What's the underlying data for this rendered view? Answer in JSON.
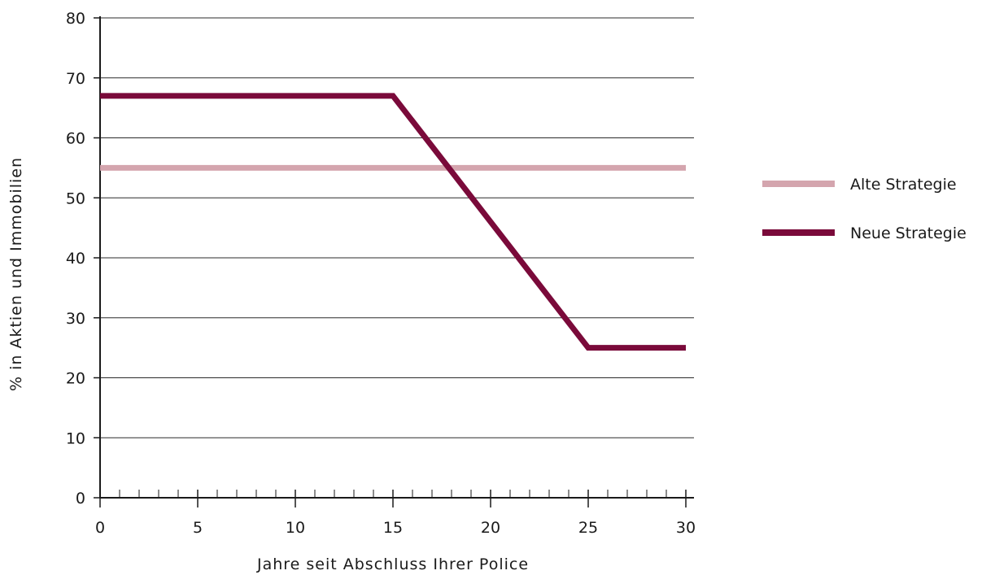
{
  "chart_data": {
    "type": "line",
    "xlabel": "Jahre seit Abschluss Ihrer Police",
    "ylabel": "% in Aktien und Immobilien",
    "xlim": [
      0,
      30
    ],
    "ylim": [
      0,
      80
    ],
    "x_ticks": [
      0,
      5,
      10,
      15,
      20,
      25,
      30
    ],
    "y_ticks": [
      0,
      10,
      20,
      30,
      40,
      50,
      60,
      70,
      80
    ],
    "x_minor_step": 1,
    "grid": "horizontal",
    "legend_position": "right",
    "series": [
      {
        "name": "Alte Strategie",
        "color": "#d4a5ae",
        "x": [
          0,
          30
        ],
        "y": [
          55,
          55
        ]
      },
      {
        "name": "Neue Strategie",
        "color": "#7a0a3a",
        "x": [
          0,
          15,
          25,
          30
        ],
        "y": [
          67,
          67,
          25,
          25
        ]
      }
    ]
  }
}
